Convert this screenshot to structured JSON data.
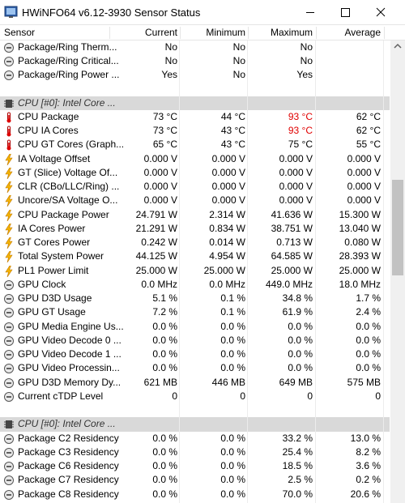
{
  "window": {
    "title": "HWiNFO64 v6.12-3930 Sensor Status"
  },
  "table": {
    "columns": [
      "Sensor",
      "Current",
      "Minimum",
      "Maximum",
      "Average"
    ],
    "sections": [
      {
        "rows": [
          {
            "icon": "gauge",
            "sensor": "Package/Ring Therm...",
            "cells": [
              "No",
              "No",
              "No",
              ""
            ]
          },
          {
            "icon": "gauge",
            "sensor": "Package/Ring Critical...",
            "cells": [
              "No",
              "No",
              "No",
              ""
            ]
          },
          {
            "icon": "gauge",
            "sensor": "Package/Ring Power ...",
            "cells": [
              "Yes",
              "No",
              "Yes",
              ""
            ]
          }
        ]
      },
      {
        "title": "CPU [#0]: Intel Core ...",
        "rows": [
          {
            "icon": "temp",
            "sensor": "CPU Package",
            "cells": [
              "73 °C",
              "44 °C",
              "93 °C",
              "62 °C"
            ],
            "max_color": "#e00000"
          },
          {
            "icon": "temp",
            "sensor": "CPU IA Cores",
            "cells": [
              "73 °C",
              "43 °C",
              "93 °C",
              "62 °C"
            ],
            "max_color": "#e00000"
          },
          {
            "icon": "temp",
            "sensor": "CPU GT Cores (Graph...",
            "cells": [
              "65 °C",
              "43 °C",
              "75 °C",
              "55 °C"
            ]
          },
          {
            "icon": "bolt",
            "sensor": "IA Voltage Offset",
            "cells": [
              "0.000 V",
              "0.000 V",
              "0.000 V",
              "0.000 V"
            ]
          },
          {
            "icon": "bolt",
            "sensor": "GT (Slice) Voltage Of...",
            "cells": [
              "0.000 V",
              "0.000 V",
              "0.000 V",
              "0.000 V"
            ]
          },
          {
            "icon": "bolt",
            "sensor": "CLR (CBo/LLC/Ring) ...",
            "cells": [
              "0.000 V",
              "0.000 V",
              "0.000 V",
              "0.000 V"
            ]
          },
          {
            "icon": "bolt",
            "sensor": "Uncore/SA Voltage O...",
            "cells": [
              "0.000 V",
              "0.000 V",
              "0.000 V",
              "0.000 V"
            ]
          },
          {
            "icon": "bolt",
            "sensor": "CPU Package Power",
            "cells": [
              "24.791 W",
              "2.314 W",
              "41.636 W",
              "15.300 W"
            ]
          },
          {
            "icon": "bolt",
            "sensor": "IA Cores Power",
            "cells": [
              "21.291 W",
              "0.834 W",
              "38.751 W",
              "13.040 W"
            ]
          },
          {
            "icon": "bolt",
            "sensor": "GT Cores Power",
            "cells": [
              "0.242 W",
              "0.014 W",
              "0.713 W",
              "0.080 W"
            ]
          },
          {
            "icon": "bolt",
            "sensor": "Total System Power",
            "cells": [
              "44.125 W",
              "4.954 W",
              "64.585 W",
              "28.393 W"
            ]
          },
          {
            "icon": "bolt",
            "sensor": "PL1 Power Limit",
            "cells": [
              "25.000 W",
              "25.000 W",
              "25.000 W",
              "25.000 W"
            ]
          },
          {
            "icon": "gauge",
            "sensor": "GPU Clock",
            "cells": [
              "0.0 MHz",
              "0.0 MHz",
              "449.0 MHz",
              "18.0 MHz"
            ]
          },
          {
            "icon": "gauge",
            "sensor": "GPU D3D Usage",
            "cells": [
              "5.1 %",
              "0.1 %",
              "34.8 %",
              "1.7 %"
            ]
          },
          {
            "icon": "gauge",
            "sensor": "GPU GT Usage",
            "cells": [
              "7.2 %",
              "0.1 %",
              "61.9 %",
              "2.4 %"
            ]
          },
          {
            "icon": "gauge",
            "sensor": "GPU Media Engine Us...",
            "cells": [
              "0.0 %",
              "0.0 %",
              "0.0 %",
              "0.0 %"
            ]
          },
          {
            "icon": "gauge",
            "sensor": "GPU Video Decode 0 ...",
            "cells": [
              "0.0 %",
              "0.0 %",
              "0.0 %",
              "0.0 %"
            ]
          },
          {
            "icon": "gauge",
            "sensor": "GPU Video Decode 1 ...",
            "cells": [
              "0.0 %",
              "0.0 %",
              "0.0 %",
              "0.0 %"
            ]
          },
          {
            "icon": "gauge",
            "sensor": "GPU Video Processin...",
            "cells": [
              "0.0 %",
              "0.0 %",
              "0.0 %",
              "0.0 %"
            ]
          },
          {
            "icon": "gauge",
            "sensor": "GPU D3D Memory Dy...",
            "cells": [
              "621 MB",
              "446 MB",
              "649 MB",
              "575 MB"
            ]
          },
          {
            "icon": "gauge",
            "sensor": "Current cTDP Level",
            "cells": [
              "0",
              "0",
              "0",
              "0"
            ]
          }
        ]
      },
      {
        "title": "CPU [#0]: Intel Core ...",
        "rows": [
          {
            "icon": "gauge",
            "sensor": "Package C2 Residency",
            "cells": [
              "0.0 %",
              "0.0 %",
              "33.2 %",
              "13.0 %"
            ]
          },
          {
            "icon": "gauge",
            "sensor": "Package C3 Residency",
            "cells": [
              "0.0 %",
              "0.0 %",
              "25.4 %",
              "8.2 %"
            ]
          },
          {
            "icon": "gauge",
            "sensor": "Package C6 Residency",
            "cells": [
              "0.0 %",
              "0.0 %",
              "18.5 %",
              "3.6 %"
            ]
          },
          {
            "icon": "gauge",
            "sensor": "Package C7 Residency",
            "cells": [
              "0.0 %",
              "0.0 %",
              "2.5 %",
              "0.2 %"
            ]
          },
          {
            "icon": "gauge",
            "sensor": "Package C8 Residency",
            "cells": [
              "0.0 %",
              "0.0 %",
              "70.0 %",
              "20.6 %"
            ]
          }
        ]
      }
    ]
  }
}
